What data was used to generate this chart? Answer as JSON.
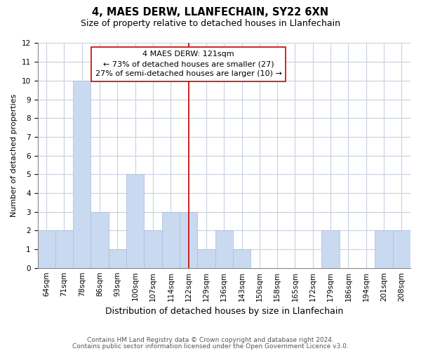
{
  "title1": "4, MAES DERW, LLANFECHAIN, SY22 6XN",
  "title2": "Size of property relative to detached houses in Llanfechain",
  "xlabel": "Distribution of detached houses by size in Llanfechain",
  "ylabel": "Number of detached properties",
  "bar_labels": [
    "64sqm",
    "71sqm",
    "78sqm",
    "86sqm",
    "93sqm",
    "100sqm",
    "107sqm",
    "114sqm",
    "122sqm",
    "129sqm",
    "136sqm",
    "143sqm",
    "150sqm",
    "158sqm",
    "165sqm",
    "172sqm",
    "179sqm",
    "186sqm",
    "194sqm",
    "201sqm",
    "208sqm"
  ],
  "bar_heights": [
    2,
    2,
    10,
    3,
    1,
    5,
    2,
    3,
    3,
    1,
    2,
    1,
    0,
    0,
    0,
    0,
    2,
    0,
    0,
    2,
    2
  ],
  "bar_color": "#c9d9f0",
  "bar_edge_color": "#aabbdd",
  "grid_color": "#c8d0e0",
  "vline_x_index": 8,
  "vline_color": "#cc0000",
  "annotation_text": "4 MAES DERW: 121sqm\n← 73% of detached houses are smaller (27)\n27% of semi-detached houses are larger (10) →",
  "annotation_box_color": "#ffffff",
  "annotation_box_edge_color": "#cc0000",
  "ylim": [
    0,
    12
  ],
  "yticks": [
    0,
    1,
    2,
    3,
    4,
    5,
    6,
    7,
    8,
    9,
    10,
    11,
    12
  ],
  "footer1": "Contains HM Land Registry data © Crown copyright and database right 2024.",
  "footer2": "Contains public sector information licensed under the Open Government Licence v3.0.",
  "background_color": "#ffffff",
  "plot_background_color": "#ffffff",
  "title1_fontsize": 10.5,
  "title2_fontsize": 9,
  "ylabel_fontsize": 8,
  "xlabel_fontsize": 9,
  "tick_fontsize": 7.5,
  "footer_fontsize": 6.5,
  "ann_fontsize": 8
}
